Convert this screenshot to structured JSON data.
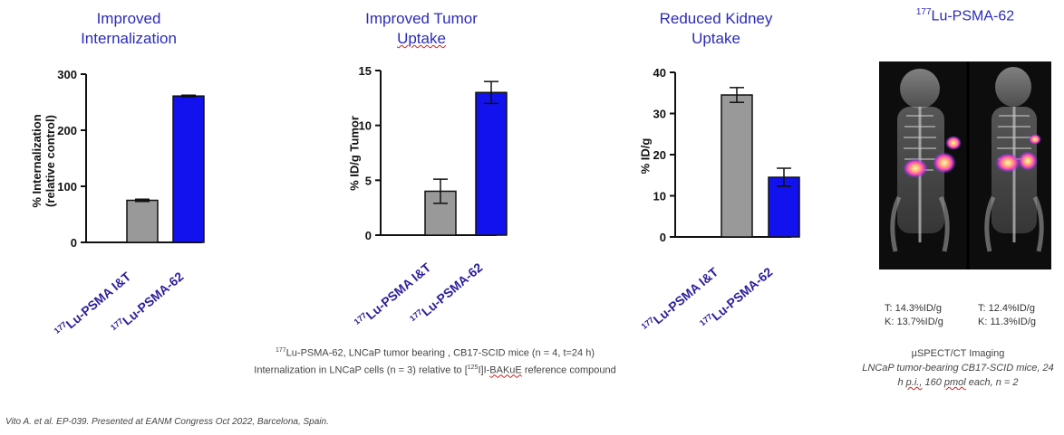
{
  "chart_data": [
    {
      "type": "bar",
      "title_lines": [
        "Improved",
        "Internalization"
      ],
      "ylabel_lines": [
        "% Internalization",
        "(relative control)"
      ],
      "categories": [
        "Lu-PSMA I&T",
        "Lu-PSMA-62"
      ],
      "category_sup": "177",
      "values": [
        75,
        261
      ],
      "errors": [
        2,
        1.5
      ],
      "ylim": [
        0,
        300
      ],
      "yticks": [
        0,
        100,
        200,
        300
      ],
      "colors": [
        "#999999",
        "#1212ee"
      ]
    },
    {
      "type": "bar",
      "title_lines": [
        "Improved Tumor",
        "Uptake"
      ],
      "ylabel_lines": [
        "% ID/g Tumor"
      ],
      "categories": [
        "Lu-PSMA I&T",
        "Lu-PSMA-62"
      ],
      "category_sup": "177",
      "values": [
        4.0,
        13.0
      ],
      "errors": [
        1.1,
        1.0
      ],
      "ylim": [
        0,
        15
      ],
      "yticks": [
        0,
        5,
        10,
        15
      ],
      "colors": [
        "#999999",
        "#1212ee"
      ]
    },
    {
      "type": "bar",
      "title_lines": [
        "Reduced Kidney",
        "Uptake"
      ],
      "ylabel_lines": [
        "% ID/g"
      ],
      "categories": [
        "Lu-PSMA I&T",
        "Lu-PSMA-62"
      ],
      "category_sup": "177",
      "values": [
        34.5,
        14.5
      ],
      "errors": [
        1.8,
        2.2
      ],
      "ylim": [
        0,
        40
      ],
      "yticks": [
        0,
        10,
        20,
        30,
        40
      ],
      "colors": [
        "#999999",
        "#1212ee"
      ]
    }
  ],
  "captions": {
    "line1_sup": "177",
    "line1": "Lu-PSMA-62, LNCaP tumor bearing , CB17-SCID mice (n = 4, t=24 h)",
    "line2_pre": "Internalization in LNCaP cells (n = 3) relative to [",
    "line2_sup": "125",
    "line2_mid": "I]I-",
    "line2_wavy": "BAKuE",
    "line2_post": " reference compound"
  },
  "imaging": {
    "title_sup": "177",
    "title": "Lu-PSMA-62",
    "left_t": "T: 14.3%ID/g",
    "left_k": "K: 13.7%ID/g",
    "right_t": "T: 12.4%ID/g",
    "right_k": "K: 11.3%ID/g",
    "method": "µSPECT/CT Imaging",
    "desc_line1": "LNCaP tumor-bearing CB17-SCID mice, 24",
    "desc_line2_pre": "h ",
    "desc_line2_pi": "p.i.,",
    "desc_line2_mid": " 160 ",
    "desc_line2_pmol": "pmol",
    "desc_line2_post": " each, n = 2"
  },
  "citation": "Vito A. et al. EP-039. Presented at EANM Congress Oct 2022, Barcelona, Spain."
}
